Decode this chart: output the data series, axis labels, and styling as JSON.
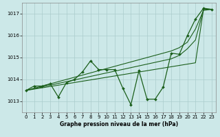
{
  "title": "Graphe pression niveau de la mer (hPa)",
  "bg_color": "#cce8e8",
  "grid_color": "#aacccc",
  "line_color": "#1a5e1a",
  "xlim": [
    -0.5,
    23.5
  ],
  "ylim": [
    1012.5,
    1017.5
  ],
  "yticks": [
    1013,
    1014,
    1015,
    1016,
    1017
  ],
  "xticks": [
    0,
    1,
    2,
    3,
    4,
    5,
    6,
    7,
    8,
    9,
    10,
    11,
    12,
    13,
    14,
    15,
    16,
    17,
    18,
    19,
    20,
    21,
    22,
    23
  ],
  "trend1": [
    1013.5,
    1013.56,
    1013.62,
    1013.68,
    1013.74,
    1013.8,
    1013.86,
    1013.92,
    1013.98,
    1014.04,
    1014.1,
    1014.16,
    1014.22,
    1014.28,
    1014.34,
    1014.4,
    1014.46,
    1014.52,
    1014.58,
    1014.64,
    1014.7,
    1014.76,
    1017.2,
    1017.2
  ],
  "trend2": [
    1013.5,
    1013.58,
    1013.66,
    1013.74,
    1013.82,
    1013.9,
    1013.98,
    1014.06,
    1014.14,
    1014.22,
    1014.3,
    1014.38,
    1014.46,
    1014.54,
    1014.62,
    1014.7,
    1014.78,
    1014.86,
    1014.94,
    1015.1,
    1015.4,
    1015.8,
    1017.2,
    1017.2
  ],
  "trend3": [
    1013.5,
    1013.6,
    1013.7,
    1013.8,
    1013.9,
    1014.0,
    1014.1,
    1014.2,
    1014.3,
    1014.4,
    1014.5,
    1014.6,
    1014.7,
    1014.8,
    1014.9,
    1015.0,
    1015.1,
    1015.2,
    1015.3,
    1015.45,
    1015.7,
    1016.3,
    1017.15,
    1017.2
  ],
  "jagged": [
    1013.5,
    1013.7,
    1013.7,
    1013.8,
    1013.2,
    1013.85,
    1014.0,
    1014.35,
    1014.85,
    1014.45,
    1014.45,
    1014.45,
    1013.6,
    1012.85,
    1014.4,
    1013.1,
    1013.1,
    1013.65,
    1015.2,
    1015.15,
    1016.0,
    1016.75,
    1017.25,
    1017.2
  ]
}
